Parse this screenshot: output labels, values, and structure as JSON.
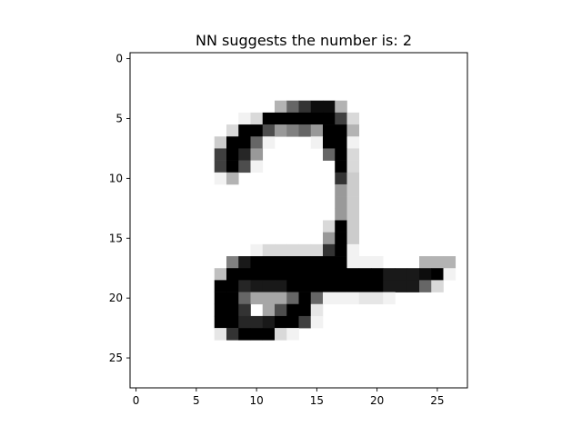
{
  "chart_data": {
    "type": "heatmap",
    "title": "NN suggests the number is: 2",
    "xlabel": "",
    "ylabel": "",
    "colormap": "gray_r",
    "value_range": [
      0,
      1
    ],
    "rows": 28,
    "cols": 28,
    "xlim": [
      -0.5,
      27.5
    ],
    "ylim": [
      27.5,
      -0.5
    ],
    "xticks": [
      "0",
      "5",
      "10",
      "15",
      "20",
      "25"
    ],
    "yticks": [
      "0",
      "5",
      "10",
      "15",
      "20",
      "25"
    ],
    "grid": false,
    "legend": "none",
    "pixels": [
      [
        0,
        0,
        0,
        0,
        0,
        0,
        0,
        0,
        0,
        0,
        0,
        0,
        0,
        0,
        0,
        0,
        0,
        0,
        0,
        0,
        0,
        0,
        0,
        0,
        0,
        0,
        0,
        0
      ],
      [
        0,
        0,
        0,
        0,
        0,
        0,
        0,
        0,
        0,
        0,
        0,
        0,
        0,
        0,
        0,
        0,
        0,
        0,
        0,
        0,
        0,
        0,
        0,
        0,
        0,
        0,
        0,
        0
      ],
      [
        0,
        0,
        0,
        0,
        0,
        0,
        0,
        0,
        0,
        0,
        0,
        0,
        0,
        0,
        0,
        0,
        0,
        0,
        0,
        0,
        0,
        0,
        0,
        0,
        0,
        0,
        0,
        0
      ],
      [
        0,
        0,
        0,
        0,
        0,
        0,
        0,
        0,
        0,
        0,
        0,
        0,
        0,
        0,
        0,
        0,
        0,
        0,
        0,
        0,
        0,
        0,
        0,
        0,
        0,
        0,
        0,
        0
      ],
      [
        0,
        0,
        0,
        0,
        0,
        0,
        0,
        0,
        0,
        0,
        0,
        0,
        0.3,
        0.6,
        0.8,
        0.95,
        0.95,
        0.3,
        0,
        0,
        0,
        0,
        0,
        0,
        0,
        0,
        0,
        0
      ],
      [
        0,
        0,
        0,
        0,
        0,
        0,
        0,
        0,
        0,
        0.05,
        0.15,
        1,
        1,
        1,
        1,
        1,
        1,
        0.75,
        0.15,
        0,
        0,
        0,
        0,
        0,
        0,
        0,
        0,
        0
      ],
      [
        0,
        0,
        0,
        0,
        0,
        0,
        0,
        0,
        0.15,
        1,
        1,
        0.7,
        0.4,
        0.5,
        0.6,
        0.4,
        1,
        1,
        0.3,
        0,
        0,
        0,
        0,
        0,
        0,
        0,
        0,
        0
      ],
      [
        0,
        0,
        0,
        0,
        0,
        0,
        0,
        0.2,
        1,
        1,
        0.6,
        0.05,
        0,
        0,
        0,
        0.05,
        1,
        1,
        0.05,
        0,
        0,
        0,
        0,
        0,
        0,
        0,
        0,
        0
      ],
      [
        0,
        0,
        0,
        0,
        0,
        0,
        0,
        0.75,
        1,
        0.85,
        0.4,
        0,
        0,
        0,
        0,
        0,
        0.6,
        1,
        0.15,
        0,
        0,
        0,
        0,
        0,
        0,
        0,
        0,
        0
      ],
      [
        0,
        0,
        0,
        0,
        0,
        0,
        0,
        0.75,
        1,
        0.7,
        0.05,
        0,
        0,
        0,
        0,
        0,
        0,
        1,
        0.15,
        0,
        0,
        0,
        0,
        0,
        0,
        0,
        0,
        0
      ],
      [
        0,
        0,
        0,
        0,
        0,
        0,
        0,
        0.05,
        0.3,
        0,
        0,
        0,
        0,
        0,
        0,
        0,
        0,
        0.8,
        0.2,
        0,
        0,
        0,
        0,
        0,
        0,
        0,
        0,
        0
      ],
      [
        0,
        0,
        0,
        0,
        0,
        0,
        0,
        0,
        0,
        0,
        0,
        0,
        0,
        0,
        0,
        0,
        0,
        0.4,
        0.2,
        0,
        0,
        0,
        0,
        0,
        0,
        0,
        0,
        0
      ],
      [
        0,
        0,
        0,
        0,
        0,
        0,
        0,
        0,
        0,
        0,
        0,
        0,
        0,
        0,
        0,
        0,
        0,
        0.4,
        0.2,
        0,
        0,
        0,
        0,
        0,
        0,
        0,
        0,
        0
      ],
      [
        0,
        0,
        0,
        0,
        0,
        0,
        0,
        0,
        0,
        0,
        0,
        0,
        0,
        0,
        0,
        0,
        0,
        0.4,
        0.2,
        0,
        0,
        0,
        0,
        0,
        0,
        0,
        0,
        0
      ],
      [
        0,
        0,
        0,
        0,
        0,
        0,
        0,
        0,
        0,
        0,
        0,
        0,
        0,
        0,
        0,
        0,
        0.15,
        1,
        0.2,
        0,
        0,
        0,
        0,
        0,
        0,
        0,
        0,
        0
      ],
      [
        0,
        0,
        0,
        0,
        0,
        0,
        0,
        0,
        0,
        0,
        0,
        0,
        0,
        0,
        0,
        0,
        0.4,
        1,
        0.2,
        0,
        0,
        0,
        0,
        0,
        0,
        0,
        0,
        0
      ],
      [
        0,
        0,
        0,
        0,
        0,
        0,
        0,
        0,
        0,
        0,
        0.05,
        0.15,
        0.15,
        0.15,
        0.15,
        0.15,
        0.8,
        1,
        0.05,
        0,
        0,
        0,
        0,
        0,
        0,
        0,
        0,
        0
      ],
      [
        0,
        0,
        0,
        0,
        0,
        0,
        0,
        0,
        0.5,
        0.9,
        1,
        1,
        1,
        1,
        1,
        1,
        1,
        1,
        0.05,
        0.05,
        0.05,
        0,
        0,
        0,
        0.3,
        0.3,
        0.3,
        0
      ],
      [
        0,
        0,
        0,
        0,
        0,
        0,
        0,
        0.25,
        1,
        1,
        1,
        1,
        1,
        1,
        1,
        1,
        1,
        1,
        1,
        1,
        1,
        0.9,
        0.9,
        0.9,
        0.95,
        1,
        0.05,
        0
      ],
      [
        0,
        0,
        0,
        0,
        0,
        0,
        0,
        1,
        1,
        0.85,
        0.9,
        0.9,
        0.9,
        1,
        1,
        1,
        1,
        1,
        1,
        1,
        1,
        0.9,
        0.9,
        0.9,
        0.6,
        0.15,
        0,
        0
      ],
      [
        0,
        0,
        0,
        0,
        0,
        0,
        0,
        1,
        1,
        0.6,
        0.35,
        0.35,
        0.35,
        0.6,
        1,
        0.6,
        0.05,
        0.05,
        0.05,
        0.1,
        0.1,
        0.05,
        0,
        0,
        0,
        0,
        0,
        0
      ],
      [
        0,
        0,
        0,
        0,
        0,
        0,
        0,
        1,
        1,
        0.8,
        0,
        0.35,
        0.7,
        1,
        1,
        0.1,
        0,
        0,
        0,
        0,
        0,
        0,
        0,
        0,
        0,
        0,
        0,
        0
      ],
      [
        0,
        0,
        0,
        0,
        0,
        0,
        0,
        1,
        1,
        0.85,
        0.85,
        0.9,
        1,
        1,
        0.75,
        0.05,
        0,
        0,
        0,
        0,
        0,
        0,
        0,
        0,
        0,
        0,
        0,
        0
      ],
      [
        0,
        0,
        0,
        0,
        0,
        0,
        0,
        0.1,
        0.8,
        1,
        1,
        1,
        0.15,
        0.05,
        0,
        0,
        0,
        0,
        0,
        0,
        0,
        0,
        0,
        0,
        0,
        0,
        0,
        0
      ],
      [
        0,
        0,
        0,
        0,
        0,
        0,
        0,
        0,
        0,
        0,
        0,
        0,
        0,
        0,
        0,
        0,
        0,
        0,
        0,
        0,
        0,
        0,
        0,
        0,
        0,
        0,
        0,
        0
      ],
      [
        0,
        0,
        0,
        0,
        0,
        0,
        0,
        0,
        0,
        0,
        0,
        0,
        0,
        0,
        0,
        0,
        0,
        0,
        0,
        0,
        0,
        0,
        0,
        0,
        0,
        0,
        0,
        0
      ],
      [
        0,
        0,
        0,
        0,
        0,
        0,
        0,
        0,
        0,
        0,
        0,
        0,
        0,
        0,
        0,
        0,
        0,
        0,
        0,
        0,
        0,
        0,
        0,
        0,
        0,
        0,
        0,
        0
      ],
      [
        0,
        0,
        0,
        0,
        0,
        0,
        0,
        0,
        0,
        0,
        0,
        0,
        0,
        0,
        0,
        0,
        0,
        0,
        0,
        0,
        0,
        0,
        0,
        0,
        0,
        0,
        0,
        0
      ]
    ]
  }
}
